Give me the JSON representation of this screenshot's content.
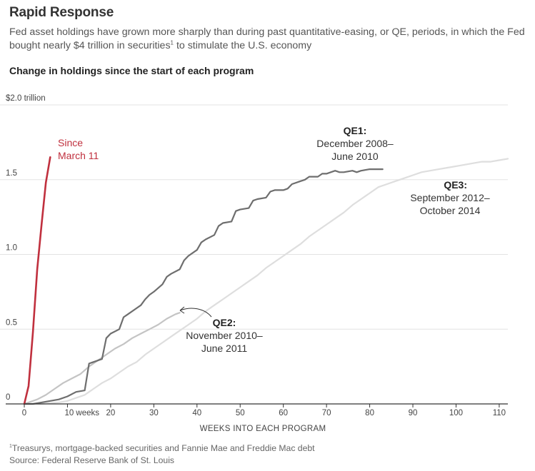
{
  "header": {
    "title": "Rapid Response",
    "subtitle": "Fed asset holdings have grown more sharply than during past quantitative-easing, or QE, periods, in which the Fed bought nearly $4 trillion in securities",
    "subtitle_mark": "1",
    "subtitle_end": " to stimulate the U.S. economy",
    "chart_title": "Change in holdings since the start of each program"
  },
  "footer": {
    "footnote_mark": "1",
    "footnote": "Treasurys, mortgage-backed securities and Fannie Mae and Freddie Mac debt",
    "source": "Source: Federal Reserve Bank of St. Louis"
  },
  "colors": {
    "current": "#c0303e",
    "qe1": "#6e6e6e",
    "qe2": "#c4c4c4",
    "qe3": "#dedede",
    "grid": "#e3e3e3",
    "axis": "#333333"
  },
  "chart_data": {
    "type": "line",
    "title": "Change in holdings since the start of each program",
    "xlabel": "WEEKS INTO EACH PROGRAM",
    "ylabel": "",
    "xlim": [
      0,
      112
    ],
    "ylim": [
      0,
      2.0
    ],
    "grid": true,
    "x_ticks": [
      0,
      10,
      20,
      30,
      40,
      50,
      60,
      70,
      80,
      90,
      100,
      110
    ],
    "x_tick_labels": [
      "0",
      "10 weeks",
      "20",
      "30",
      "40",
      "50",
      "60",
      "70",
      "80",
      "90",
      "100",
      "110"
    ],
    "y_ticks": [
      0,
      0.5,
      1.0,
      1.5,
      2.0
    ],
    "y_tick_labels": [
      "0",
      "0.5",
      "1.0",
      "1.5",
      "$2.0 trillion"
    ],
    "series": [
      {
        "id": "current",
        "name": "Since March 11",
        "label_lines": [
          "Since",
          "March 11"
        ],
        "x": [
          0,
          1,
          2,
          3,
          4,
          5,
          6
        ],
        "values": [
          0,
          0.12,
          0.48,
          0.9,
          1.2,
          1.48,
          1.65
        ]
      },
      {
        "id": "qe1",
        "name": "QE1: December 2008–June 2010",
        "label_lines": [
          "QE1:",
          "December 2008–",
          "June 2010"
        ],
        "x": [
          0,
          2,
          4,
          6,
          8,
          10,
          12,
          14,
          15,
          16,
          18,
          19,
          20,
          22,
          23,
          24,
          26,
          27,
          28,
          29,
          30,
          32,
          33,
          34,
          36,
          37,
          38,
          40,
          41,
          42,
          44,
          45,
          46,
          48,
          49,
          50,
          52,
          53,
          54,
          56,
          57,
          58,
          60,
          61,
          62,
          64,
          65,
          66,
          68,
          69,
          70,
          72,
          73,
          74,
          76,
          77,
          78,
          80,
          81,
          82,
          83
        ],
        "values": [
          0.0,
          0.0,
          0.01,
          0.02,
          0.03,
          0.05,
          0.08,
          0.09,
          0.27,
          0.28,
          0.3,
          0.44,
          0.47,
          0.5,
          0.58,
          0.6,
          0.64,
          0.66,
          0.7,
          0.73,
          0.75,
          0.8,
          0.85,
          0.87,
          0.9,
          0.96,
          0.99,
          1.03,
          1.08,
          1.1,
          1.13,
          1.19,
          1.21,
          1.22,
          1.29,
          1.3,
          1.31,
          1.36,
          1.37,
          1.38,
          1.42,
          1.43,
          1.43,
          1.44,
          1.47,
          1.49,
          1.5,
          1.52,
          1.52,
          1.54,
          1.54,
          1.56,
          1.55,
          1.55,
          1.56,
          1.55,
          1.56,
          1.57,
          1.57,
          1.57,
          1.57
        ]
      },
      {
        "id": "qe2",
        "name": "QE2: November 2010–June 2011",
        "label_lines": [
          "QE2:",
          "November 2010–",
          "June 2011"
        ],
        "x": [
          0,
          3,
          5,
          7,
          9,
          11,
          13,
          15,
          17,
          19,
          21,
          23,
          25,
          27,
          29,
          31,
          33,
          35,
          36
        ],
        "values": [
          0,
          0.03,
          0.06,
          0.1,
          0.14,
          0.17,
          0.2,
          0.25,
          0.29,
          0.33,
          0.37,
          0.4,
          0.44,
          0.47,
          0.5,
          0.53,
          0.57,
          0.6,
          0.61
        ]
      },
      {
        "id": "qe3",
        "name": "QE3: September 2012–October 2014",
        "label_lines": [
          "QE3:",
          "September 2012–",
          "October 2014"
        ],
        "x": [
          0,
          4,
          8,
          10,
          12,
          14,
          16,
          18,
          20,
          22,
          24,
          26,
          28,
          30,
          32,
          34,
          36,
          38,
          40,
          42,
          44,
          46,
          48,
          50,
          52,
          54,
          56,
          58,
          60,
          62,
          64,
          66,
          68,
          70,
          72,
          74,
          76,
          78,
          80,
          82,
          84,
          86,
          88,
          90,
          92,
          94,
          96,
          98,
          100,
          102,
          104,
          106,
          108,
          110,
          112
        ],
        "values": [
          0,
          0.0,
          0.01,
          0.02,
          0.04,
          0.06,
          0.1,
          0.14,
          0.17,
          0.21,
          0.25,
          0.28,
          0.33,
          0.37,
          0.41,
          0.45,
          0.49,
          0.53,
          0.57,
          0.62,
          0.66,
          0.7,
          0.74,
          0.78,
          0.82,
          0.86,
          0.91,
          0.95,
          0.99,
          1.03,
          1.07,
          1.12,
          1.16,
          1.2,
          1.24,
          1.28,
          1.33,
          1.37,
          1.41,
          1.45,
          1.47,
          1.49,
          1.51,
          1.53,
          1.55,
          1.56,
          1.57,
          1.58,
          1.59,
          1.6,
          1.61,
          1.62,
          1.62,
          1.63,
          1.64
        ]
      }
    ]
  }
}
